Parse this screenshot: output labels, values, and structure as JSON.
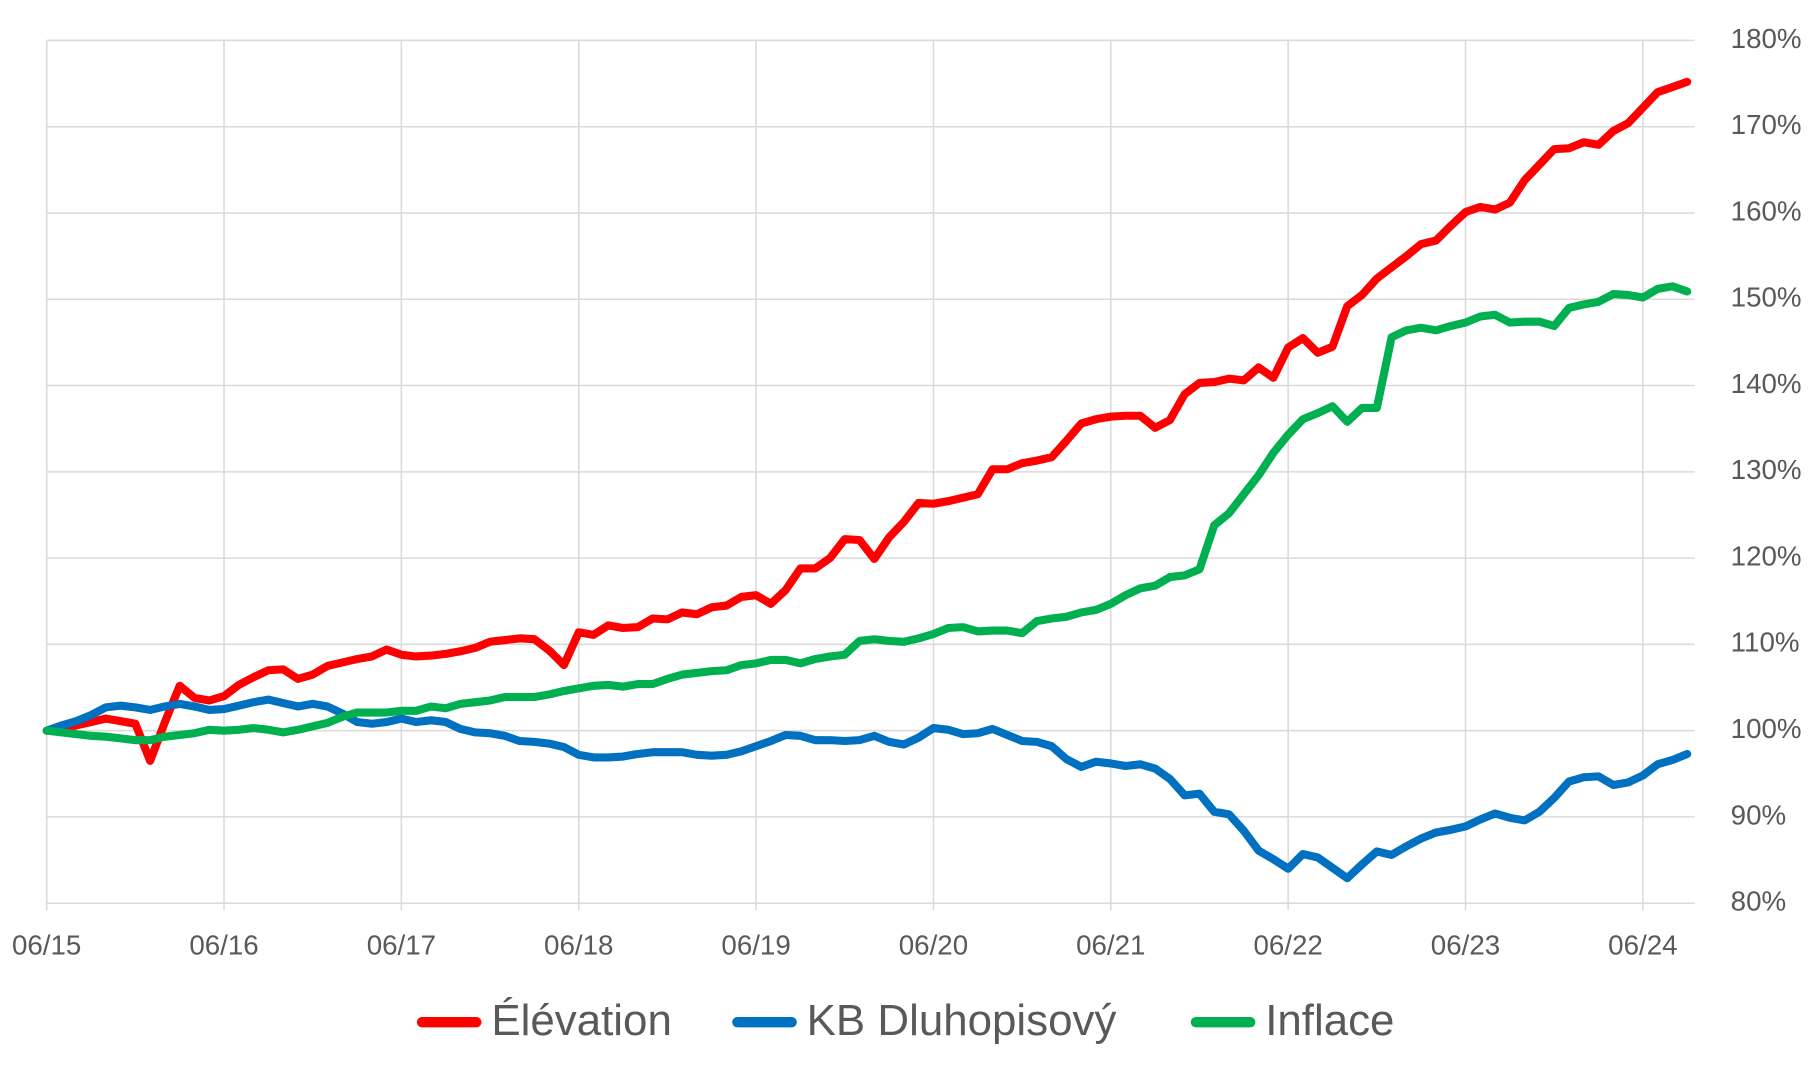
{
  "chart_data": {
    "type": "line",
    "categories": [
      "06/15",
      null,
      null,
      null,
      null,
      null,
      null,
      null,
      null,
      null,
      null,
      null,
      "06/16",
      null,
      null,
      null,
      null,
      null,
      null,
      null,
      null,
      null,
      null,
      null,
      "06/17",
      null,
      null,
      null,
      null,
      null,
      null,
      null,
      null,
      null,
      null,
      null,
      "06/18",
      null,
      null,
      null,
      null,
      null,
      null,
      null,
      null,
      null,
      null,
      null,
      "06/19",
      null,
      null,
      null,
      null,
      null,
      null,
      null,
      null,
      null,
      null,
      null,
      "06/20",
      null,
      null,
      null,
      null,
      null,
      null,
      null,
      null,
      null,
      null,
      null,
      "06/21",
      null,
      null,
      null,
      null,
      null,
      null,
      null,
      null,
      null,
      null,
      null,
      "06/22",
      null,
      null,
      null,
      null,
      null,
      null,
      null,
      null,
      null,
      null,
      null,
      "06/23",
      null,
      null,
      null,
      null,
      null,
      null,
      null,
      null,
      null,
      null,
      null,
      "06/24",
      null,
      null,
      null
    ],
    "series": [
      {
        "name": "Élévation",
        "color": "#ff0000",
        "values": [
          100,
          100.3,
          100.6,
          101,
          101.4,
          101.1,
          100.8,
          96.5,
          101,
          105.2,
          103.8,
          103.5,
          104,
          105.3,
          106.2,
          107,
          107.1,
          106,
          106.5,
          107.5,
          107.9,
          108.3,
          108.6,
          109.4,
          108.8,
          108.6,
          108.7,
          108.9,
          109.2,
          109.6,
          110.3,
          110.5,
          110.7,
          110.6,
          109.3,
          107.6,
          111.4,
          111.1,
          112.2,
          111.9,
          112,
          113,
          112.9,
          113.7,
          113.5,
          114.3,
          114.5,
          115.5,
          115.7,
          114.7,
          116.3,
          118.8,
          118.8,
          120,
          122.2,
          122.1,
          119.9,
          122.4,
          124.2,
          126.4,
          126.3,
          126.6,
          127,
          127.4,
          130.3,
          130.3,
          131,
          131.3,
          131.7,
          133.6,
          135.6,
          136.1,
          136.4,
          136.5,
          136.5,
          135.1,
          136,
          139,
          140.3,
          140.4,
          140.8,
          140.6,
          142.1,
          140.9,
          144.4,
          145.5,
          143.8,
          144.5,
          149.2,
          150.5,
          152.4,
          153.7,
          155,
          156.4,
          156.8,
          158.5,
          160.1,
          160.7,
          160.4,
          161.2,
          163.8,
          165.6,
          167.4,
          167.5,
          168.2,
          167.9,
          169.5,
          170.4,
          172.2,
          174,
          174.6,
          175.2
        ]
      },
      {
        "name": "KB Dluhopisový",
        "color": "#0070c0",
        "values": [
          100,
          100.6,
          101.1,
          101.8,
          102.7,
          102.9,
          102.7,
          102.4,
          102.8,
          103.1,
          102.8,
          102.4,
          102.5,
          102.9,
          103.3,
          103.6,
          103.2,
          102.8,
          103.1,
          102.8,
          102,
          101,
          100.8,
          101,
          101.4,
          101,
          101.2,
          101,
          100.2,
          99.8,
          99.7,
          99.4,
          98.8,
          98.7,
          98.5,
          98.1,
          97.2,
          96.9,
          96.9,
          97,
          97.3,
          97.5,
          97.5,
          97.5,
          97.2,
          97.1,
          97.2,
          97.6,
          98.2,
          98.8,
          99.5,
          99.4,
          98.9,
          98.9,
          98.8,
          98.9,
          99.4,
          98.7,
          98.4,
          99.2,
          100.3,
          100.1,
          99.6,
          99.7,
          100.2,
          99.5,
          98.8,
          98.7,
          98.2,
          96.7,
          95.8,
          96.4,
          96.2,
          95.9,
          96.1,
          95.6,
          94.4,
          92.5,
          92.7,
          90.6,
          90.3,
          88.4,
          86.1,
          85.1,
          84,
          85.7,
          85.3,
          84.1,
          82.9,
          84.5,
          86,
          85.6,
          86.6,
          87.5,
          88.2,
          88.5,
          88.9,
          89.7,
          90.4,
          89.9,
          89.6,
          90.6,
          92.2,
          94.1,
          94.6,
          94.7,
          93.7,
          94,
          94.8,
          96.1,
          96.6,
          97.3
        ]
      },
      {
        "name": "Inflace",
        "color": "#00b050",
        "values": [
          100,
          99.8,
          99.6,
          99.4,
          99.3,
          99.1,
          98.9,
          98.9,
          99.3,
          99.5,
          99.7,
          100.1,
          100,
          100.1,
          100.3,
          100.1,
          99.8,
          100.1,
          100.5,
          100.9,
          101.6,
          102.1,
          102.1,
          102.1,
          102.3,
          102.3,
          102.8,
          102.6,
          103.1,
          103.3,
          103.5,
          103.9,
          103.9,
          103.9,
          104.2,
          104.6,
          104.9,
          105.2,
          105.3,
          105.1,
          105.4,
          105.4,
          106,
          106.5,
          106.7,
          106.9,
          107,
          107.6,
          107.8,
          108.2,
          108.2,
          107.8,
          108.3,
          108.6,
          108.8,
          110.4,
          110.6,
          110.4,
          110.3,
          110.7,
          111.2,
          111.9,
          112,
          111.5,
          111.6,
          111.6,
          111.3,
          112.7,
          113,
          113.2,
          113.7,
          114,
          114.7,
          115.7,
          116.5,
          116.8,
          117.8,
          118,
          118.7,
          123.8,
          125.2,
          127.4,
          129.6,
          132.2,
          134.3,
          136.1,
          136.8,
          137.6,
          135.8,
          137.4,
          137.4,
          145.6,
          146.4,
          146.7,
          146.4,
          146.9,
          147.3,
          148,
          148.2,
          147.3,
          147.4,
          147.4,
          146.9,
          149,
          149.4,
          149.7,
          150.6,
          150.5,
          150.2,
          151.2,
          151.5,
          150.9
        ]
      }
    ],
    "ylim": [
      80,
      180
    ],
    "yticks": [
      {
        "value": 80,
        "label": "80%"
      },
      {
        "value": 90,
        "label": "90%"
      },
      {
        "value": 100,
        "label": "100%"
      },
      {
        "value": 110,
        "label": "110%"
      },
      {
        "value": 120,
        "label": "120%"
      },
      {
        "value": 130,
        "label": "130%"
      },
      {
        "value": 140,
        "label": "140%"
      },
      {
        "value": 150,
        "label": "150%"
      },
      {
        "value": 160,
        "label": "160%"
      },
      {
        "value": 170,
        "label": "170%"
      },
      {
        "value": 180,
        "label": "180%"
      }
    ],
    "grid": true,
    "legend": "bottom"
  }
}
